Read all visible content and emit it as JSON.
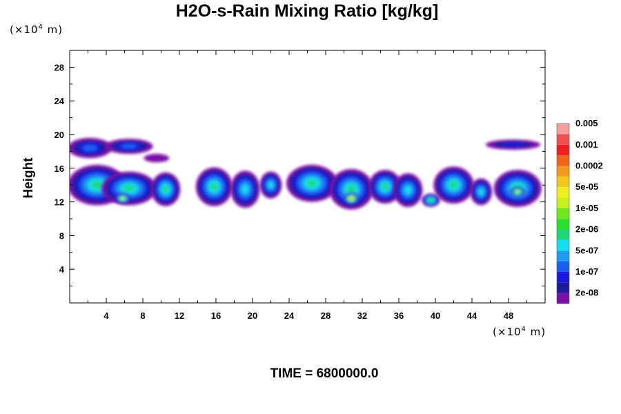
{
  "chart_data": {
    "type": "heatmap",
    "title": "H2O-s-Rain Mixing Ratio [kg/kg]",
    "ylabel": "Height",
    "xlabel": "",
    "x_unit_label": "(×10",
    "x_unit_exp": "4",
    "x_unit_tail": " m)",
    "y_unit_label": "(×10",
    "y_unit_exp": "4",
    "y_unit_tail": " m)",
    "xlim": [
      0,
      52
    ],
    "ylim": [
      0,
      30
    ],
    "x_ticks": [
      4,
      8,
      12,
      16,
      20,
      24,
      28,
      32,
      36,
      40,
      44,
      48
    ],
    "y_ticks": [
      4,
      8,
      12,
      16,
      20,
      24,
      28
    ],
    "footer": "TIME = 6800000.0",
    "colorbar": {
      "colors": [
        "#7b0fa8",
        "#1b1b9e",
        "#1a1adf",
        "#1a5ef0",
        "#1e9cf0",
        "#12e0f0",
        "#1ed87a",
        "#2ae02a",
        "#6ee81e",
        "#c8f01e",
        "#f0f01e",
        "#f0c81e",
        "#f09a1e",
        "#f0641e",
        "#f01e1e",
        "#f05050",
        "#f4a0a0"
      ],
      "labels": [
        "2e-08",
        "1e-07",
        "5e-07",
        "2e-06",
        "1e-05",
        "5e-05",
        "0.0002",
        "0.001",
        "0.005"
      ],
      "label_levels": [
        1,
        3,
        5,
        7,
        9,
        11,
        13,
        15,
        17
      ]
    },
    "cloud_blobs": [
      {
        "x": 2.2,
        "y": 18.4,
        "rx": 2.4,
        "ry": 1.2,
        "level": 3
      },
      {
        "x": 6.5,
        "y": 18.6,
        "rx": 2.6,
        "ry": 0.9,
        "level": 3
      },
      {
        "x": 9.5,
        "y": 17.2,
        "rx": 1.4,
        "ry": 0.5,
        "level": 0
      },
      {
        "x": 3.0,
        "y": 14.0,
        "rx": 3.2,
        "ry": 2.4,
        "level": 6
      },
      {
        "x": 6.5,
        "y": 13.6,
        "rx": 3.0,
        "ry": 2.0,
        "level": 6
      },
      {
        "x": 10.5,
        "y": 13.5,
        "rx": 1.6,
        "ry": 2.0,
        "level": 6
      },
      {
        "x": 5.8,
        "y": 12.4,
        "rx": 0.8,
        "ry": 0.6,
        "level": 10
      },
      {
        "x": 15.8,
        "y": 13.8,
        "rx": 2.0,
        "ry": 2.3,
        "level": 6
      },
      {
        "x": 19.2,
        "y": 13.5,
        "rx": 1.6,
        "ry": 2.2,
        "level": 5
      },
      {
        "x": 22.0,
        "y": 14.0,
        "rx": 1.2,
        "ry": 1.6,
        "level": 5
      },
      {
        "x": 26.5,
        "y": 14.2,
        "rx": 2.8,
        "ry": 2.2,
        "level": 6
      },
      {
        "x": 30.8,
        "y": 13.5,
        "rx": 2.4,
        "ry": 2.4,
        "level": 6
      },
      {
        "x": 30.8,
        "y": 12.4,
        "rx": 0.8,
        "ry": 0.7,
        "level": 12
      },
      {
        "x": 34.5,
        "y": 13.8,
        "rx": 1.8,
        "ry": 2.0,
        "level": 6
      },
      {
        "x": 37.0,
        "y": 13.4,
        "rx": 1.6,
        "ry": 2.0,
        "level": 5
      },
      {
        "x": 39.5,
        "y": 12.2,
        "rx": 1.0,
        "ry": 0.8,
        "level": 7
      },
      {
        "x": 42.0,
        "y": 14.0,
        "rx": 2.2,
        "ry": 2.2,
        "level": 6
      },
      {
        "x": 45.0,
        "y": 13.2,
        "rx": 1.2,
        "ry": 1.6,
        "level": 5
      },
      {
        "x": 49.0,
        "y": 13.6,
        "rx": 2.6,
        "ry": 2.2,
        "level": 6
      },
      {
        "x": 49.0,
        "y": 13.2,
        "rx": 0.8,
        "ry": 0.6,
        "level": 10
      },
      {
        "x": 48.5,
        "y": 18.8,
        "rx": 3.0,
        "ry": 0.6,
        "level": 2
      }
    ]
  }
}
